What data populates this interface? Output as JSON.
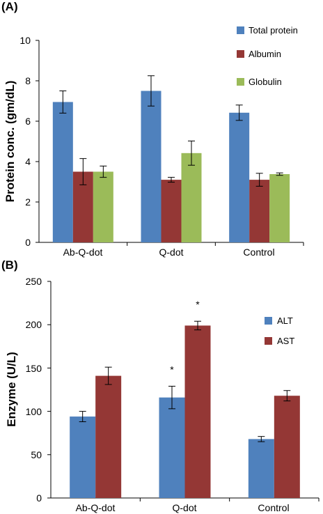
{
  "chart_data": [
    {
      "panel_label": "(A)",
      "type": "bar",
      "categories": [
        "Ab-Q-dot",
        "Q-dot",
        "Control"
      ],
      "ylabel": "Protein conc. (gm/dL)",
      "ylim": [
        0,
        10
      ],
      "yticks": [
        "0",
        "2",
        "4",
        "6",
        "8",
        "10"
      ],
      "grid": false,
      "legend_position": "top-right",
      "series": [
        {
          "name": "Total protein",
          "color": "#4F81BD",
          "values": [
            6.95,
            7.5,
            6.42
          ],
          "errors": [
            0.55,
            0.75,
            0.38
          ]
        },
        {
          "name": "Albumin",
          "color": "#943735",
          "values": [
            3.5,
            3.1,
            3.1
          ],
          "errors": [
            0.65,
            0.12,
            0.32
          ]
        },
        {
          "name": "Globulin",
          "color": "#9BBB59",
          "values": [
            3.5,
            4.42,
            3.38
          ],
          "errors": [
            0.28,
            0.6,
            0.06
          ]
        }
      ]
    },
    {
      "panel_label": "(B)",
      "type": "bar",
      "categories": [
        "Ab-Q-dot",
        "Q-dot",
        "Control"
      ],
      "ylabel": "Enzyme (U/L)",
      "ylim": [
        0,
        250
      ],
      "yticks": [
        "0",
        "50",
        "100",
        "150",
        "200",
        "250"
      ],
      "grid": false,
      "legend_position": "top-right",
      "series": [
        {
          "name": "ALT",
          "color": "#4F81BD",
          "values": [
            94,
            116,
            68
          ],
          "errors": [
            6,
            13,
            3
          ]
        },
        {
          "name": "AST",
          "color": "#943735",
          "values": [
            141,
            199,
            118
          ],
          "errors": [
            10,
            5,
            6
          ]
        }
      ],
      "annotations": [
        {
          "text": "*",
          "series": 0,
          "category": 1
        },
        {
          "text": "*",
          "series": 1,
          "category": 1
        }
      ]
    }
  ]
}
